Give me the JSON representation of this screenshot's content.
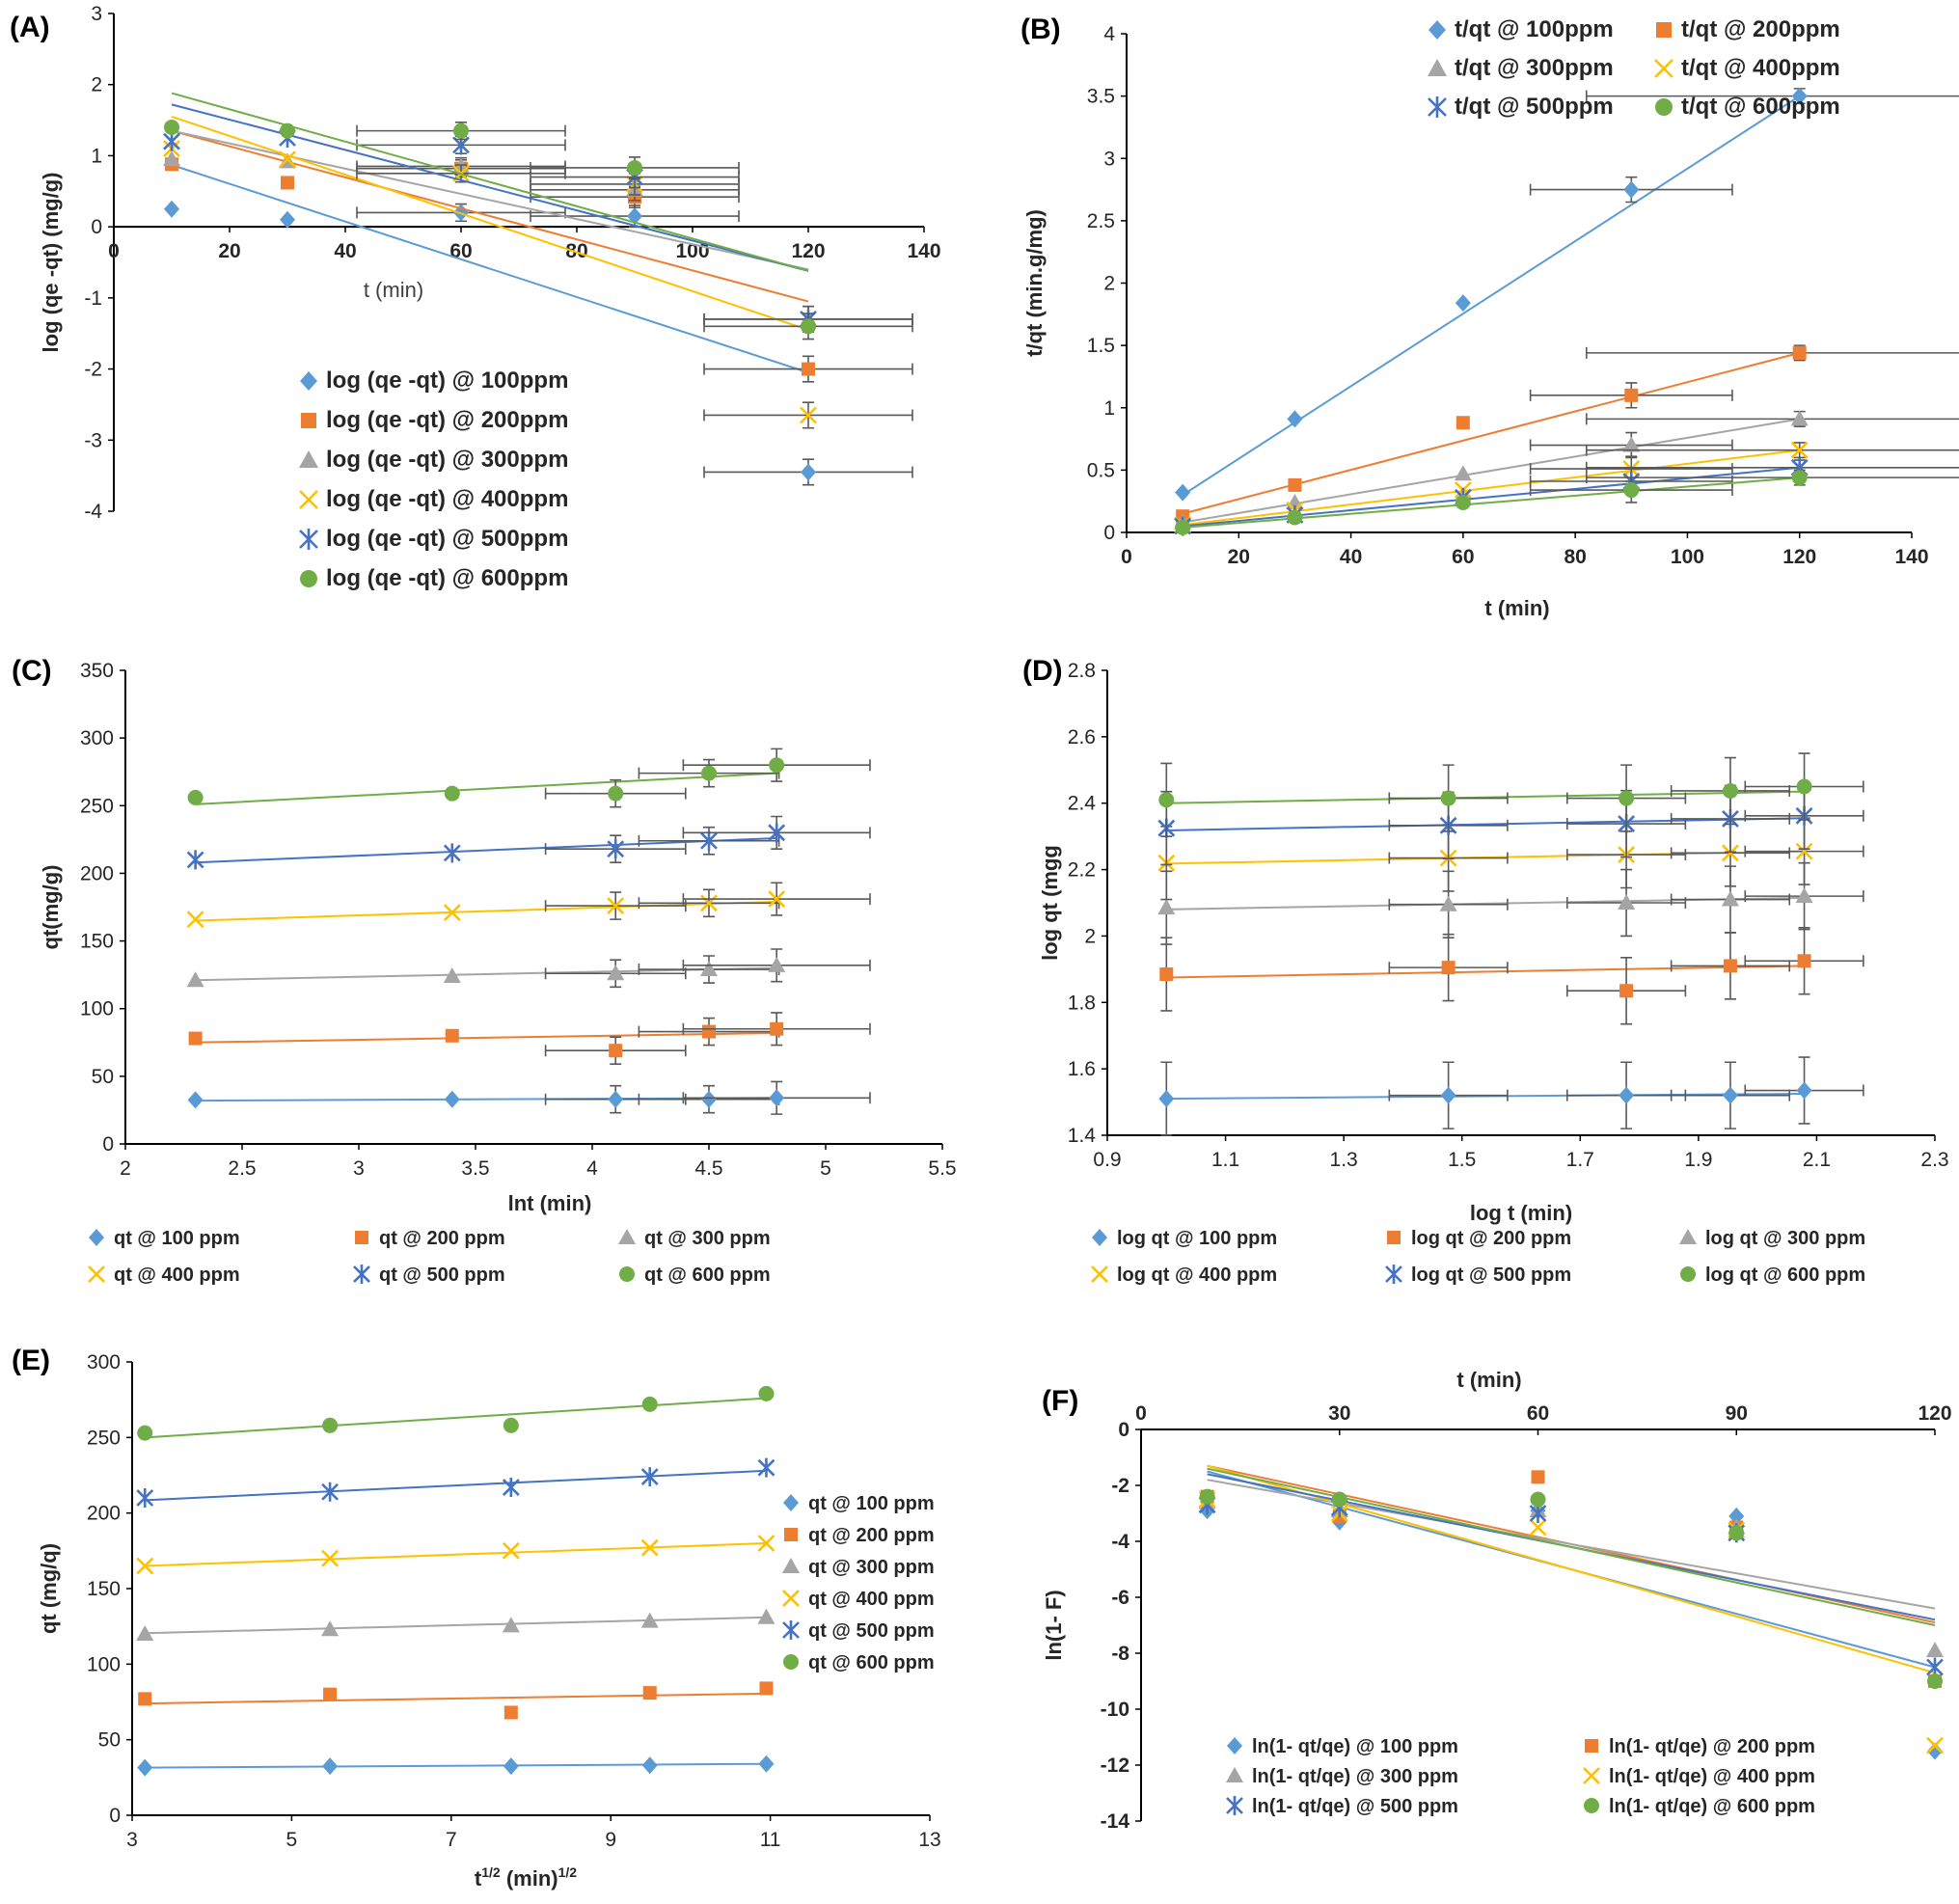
{
  "colors": [
    "#5B9BD5",
    "#ED7D31",
    "#A5A5A5",
    "#FFC000",
    "#4472C4",
    "#70AD47"
  ],
  "chart_data": [
    {
      "id": "A",
      "panel_label": "(A)",
      "type": "scatter",
      "xlabel": "t (min)",
      "ylabel": "log (qe -qt) (mg/g)",
      "xlim": [
        0,
        140
      ],
      "ylim": [
        -4,
        3
      ],
      "xticks": [
        "0",
        "20",
        "40",
        "60",
        "80",
        "100",
        "120",
        "140"
      ],
      "yticks": [
        "-4",
        "-3",
        "-2",
        "-1",
        "0",
        "1",
        "2",
        "3"
      ],
      "x": [
        10,
        30,
        60,
        90,
        120
      ],
      "series": [
        {
          "name": "log (qe -qt) @ 100ppm",
          "values": [
            0.25,
            0.1,
            0.2,
            0.15,
            -3.45
          ],
          "fit": [
            0.87,
            -2.05
          ]
        },
        {
          "name": "log (qe -qt) @ 200ppm",
          "values": [
            0.88,
            0.62,
            0.82,
            0.42,
            -2.0
          ],
          "fit": [
            1.35,
            -1.05
          ]
        },
        {
          "name": "log (qe -qt) @ 300ppm",
          "values": [
            0.95,
            0.92,
            0.85,
            0.52,
            -1.3
          ],
          "fit": [
            1.35,
            -0.6
          ]
        },
        {
          "name": "log (qe -qt) @ 400ppm",
          "values": [
            1.1,
            0.95,
            0.75,
            0.6,
            -2.65
          ],
          "fit": [
            1.55,
            -1.45
          ]
        },
        {
          "name": "log (qe -qt) @ 500ppm",
          "values": [
            1.2,
            1.25,
            1.15,
            0.7,
            -1.3
          ],
          "fit": [
            1.72,
            -0.62
          ]
        },
        {
          "name": "log (qe -qt) @ 600ppm",
          "values": [
            1.4,
            1.35,
            1.35,
            0.83,
            -1.4
          ],
          "fit": [
            1.88,
            -0.62
          ]
        }
      ]
    },
    {
      "id": "B",
      "panel_label": "(B)",
      "type": "scatter",
      "xlabel": "t (min)",
      "ylabel": "t/qt (min.g/mg)",
      "xlim": [
        0,
        140
      ],
      "ylim": [
        0,
        4
      ],
      "xticks": [
        "0",
        "20",
        "40",
        "60",
        "80",
        "100",
        "120",
        "140"
      ],
      "yticks": [
        "0",
        "0.5",
        "1",
        "1.5",
        "2",
        "2.5",
        "3",
        "3.5",
        "4"
      ],
      "x": [
        10,
        30,
        60,
        90,
        120
      ],
      "series": [
        {
          "name": "t/qt @ 100ppm",
          "values": [
            0.32,
            0.91,
            1.84,
            2.75,
            3.5
          ],
          "fit": [
            0.3,
            3.5
          ]
        },
        {
          "name": "t/qt @ 200ppm",
          "values": [
            0.13,
            0.38,
            0.88,
            1.1,
            1.44
          ],
          "fit": [
            0.15,
            1.44
          ]
        },
        {
          "name": "t/qt @ 300ppm",
          "values": [
            0.08,
            0.24,
            0.47,
            0.7,
            0.91
          ],
          "fit": [
            0.08,
            0.91
          ]
        },
        {
          "name": "t/qt @ 400ppm",
          "values": [
            0.06,
            0.18,
            0.34,
            0.51,
            0.66
          ],
          "fit": [
            0.06,
            0.66
          ]
        },
        {
          "name": "t/qt @ 500ppm",
          "values": [
            0.05,
            0.14,
            0.28,
            0.41,
            0.52
          ],
          "fit": [
            0.05,
            0.52
          ]
        },
        {
          "name": "t/qt @ 600ppm",
          "values": [
            0.04,
            0.12,
            0.24,
            0.34,
            0.44
          ],
          "fit": [
            0.04,
            0.44
          ]
        }
      ]
    },
    {
      "id": "C",
      "panel_label": "(C)",
      "type": "scatter",
      "xlabel": "lnt (min)",
      "ylabel": "qt(mg/g)",
      "xlim": [
        2,
        5.5
      ],
      "ylim": [
        0,
        350
      ],
      "xticks": [
        "2",
        "2.5",
        "3",
        "3.5",
        "4",
        "4.5",
        "5",
        "5.5"
      ],
      "yticks": [
        "0",
        "50",
        "100",
        "150",
        "200",
        "250",
        "300",
        "350"
      ],
      "x": [
        2.3,
        3.4,
        4.1,
        4.5,
        4.79
      ],
      "series": [
        {
          "name": "qt @ 100 ppm",
          "values": [
            32.5,
            33,
            33,
            33,
            34
          ],
          "fit": [
            32,
            34
          ]
        },
        {
          "name": "qt @ 200 ppm",
          "values": [
            78,
            80,
            69,
            83,
            85
          ],
          "fit": [
            75,
            82
          ]
        },
        {
          "name": "qt @ 300 ppm",
          "values": [
            121,
            124,
            126,
            129,
            132
          ],
          "fit": [
            121,
            130
          ]
        },
        {
          "name": "qt @ 400 ppm",
          "values": [
            166,
            171,
            176,
            178,
            181
          ],
          "fit": [
            165,
            179
          ]
        },
        {
          "name": "qt @ 500 ppm",
          "values": [
            210,
            215,
            218,
            224,
            230
          ],
          "fit": [
            208,
            226
          ]
        },
        {
          "name": "qt @ 600 ppm",
          "values": [
            256,
            259,
            259,
            274,
            280
          ],
          "fit": [
            251,
            274
          ]
        }
      ]
    },
    {
      "id": "D",
      "panel_label": "(D)",
      "type": "scatter",
      "xlabel": "log t (min)",
      "ylabel": "log qt (mgg",
      "xlim": [
        0.9,
        2.3
      ],
      "ylim": [
        1.4,
        2.8
      ],
      "xticks": [
        "0.9",
        "1.1",
        "1.3",
        "1.5",
        "1.7",
        "1.9",
        "2.1",
        "2.3"
      ],
      "yticks": [
        "1.4",
        "1.6",
        "1.8",
        "2",
        "2.2",
        "2.4",
        "2.6",
        "2.8"
      ],
      "x": [
        1.0,
        1.477,
        1.778,
        1.954,
        2.079
      ],
      "series": [
        {
          "name": "log qt @ 100 ppm",
          "values": [
            1.51,
            1.52,
            1.52,
            1.52,
            1.535
          ],
          "fit": [
            1.51,
            1.525
          ]
        },
        {
          "name": "log qt @ 200 ppm",
          "values": [
            1.885,
            1.905,
            1.835,
            1.91,
            1.925
          ],
          "fit": [
            1.875,
            1.91
          ]
        },
        {
          "name": "log qt @ 300 ppm",
          "values": [
            2.085,
            2.095,
            2.1,
            2.11,
            2.12
          ],
          "fit": [
            2.08,
            2.115
          ]
        },
        {
          "name": "log qt @ 400 ppm",
          "values": [
            2.22,
            2.235,
            2.245,
            2.25,
            2.255
          ],
          "fit": [
            2.218,
            2.255
          ]
        },
        {
          "name": "log qt @ 500 ppm",
          "values": [
            2.325,
            2.333,
            2.338,
            2.353,
            2.362
          ],
          "fit": [
            2.318,
            2.355
          ]
        },
        {
          "name": "log qt @ 600 ppm",
          "values": [
            2.41,
            2.415,
            2.415,
            2.437,
            2.45
          ],
          "fit": [
            2.4,
            2.435
          ]
        }
      ]
    },
    {
      "id": "E",
      "panel_label": "(E)",
      "type": "scatter",
      "xlabel": "t1/2 (min)1/2",
      "ylabel": "qt (mg/q)",
      "xlim": [
        3,
        13
      ],
      "ylim": [
        0,
        300
      ],
      "xticks": [
        "3",
        "5",
        "7",
        "9",
        "11",
        "13"
      ],
      "yticks": [
        "0",
        "50",
        "100",
        "150",
        "200",
        "250",
        "300"
      ],
      "x": [
        3.16,
        5.48,
        7.75,
        9.49,
        10.95
      ],
      "series": [
        {
          "name": "qt @ 100 ppm",
          "values": [
            31.5,
            32.5,
            32.5,
            33,
            34
          ],
          "fit": [
            31.5,
            34
          ]
        },
        {
          "name": "qt @ 200 ppm",
          "values": [
            77,
            80,
            68,
            81,
            84
          ],
          "fit": [
            74,
            80.5
          ]
        },
        {
          "name": "qt @ 300 ppm",
          "values": [
            120,
            123,
            125.5,
            128.5,
            131
          ],
          "fit": [
            120.5,
            131
          ]
        },
        {
          "name": "qt @ 400 ppm",
          "values": [
            165,
            170,
            175,
            177,
            180
          ],
          "fit": [
            165,
            180
          ]
        },
        {
          "name": "qt @ 500 ppm",
          "values": [
            210,
            214,
            217,
            224,
            230
          ],
          "fit": [
            208.5,
            228
          ]
        },
        {
          "name": "qt @ 600 ppm",
          "values": [
            253,
            258,
            258,
            272,
            279
          ],
          "fit": [
            250,
            276
          ]
        }
      ]
    },
    {
      "id": "F",
      "panel_label": "(F)",
      "type": "scatter",
      "title": "t (min)",
      "ylabel": "ln(1- F)",
      "xlim": [
        0,
        120
      ],
      "ylim": [
        -14,
        0
      ],
      "xticks": [
        "0",
        "30",
        "60",
        "90",
        "120"
      ],
      "yticks": [
        "-14",
        "-12",
        "-10",
        "-8",
        "-6",
        "-4",
        "-2",
        "0"
      ],
      "x": [
        10,
        30,
        60,
        90,
        120
      ],
      "series": [
        {
          "name": "ln(1- qt/qe) @ 100 ppm",
          "values": [
            -2.9,
            -3.3,
            -2.9,
            -3.1,
            -11.5
          ],
          "fit": [
            -1.5,
            -8.5
          ]
        },
        {
          "name": "ln(1- qt/qe) @ 200 ppm",
          "values": [
            -2.4,
            -3.1,
            -1.7,
            -3.5,
            -9.0
          ],
          "fit": [
            -1.3,
            -6.9
          ]
        },
        {
          "name": "ln(1- qt/qe) @ 300 ppm",
          "values": [
            -2.6,
            -2.9,
            -2.9,
            -3.5,
            -7.9
          ],
          "fit": [
            -1.8,
            -6.4
          ]
        },
        {
          "name": "ln(1- qt/qe) @ 400 ppm",
          "values": [
            -2.5,
            -3.0,
            -3.5,
            -3.6,
            -11.3
          ],
          "fit": [
            -1.3,
            -8.7
          ]
        },
        {
          "name": "ln(1- qt/qe) @ 500 ppm",
          "values": [
            -2.7,
            -2.8,
            -3.0,
            -3.7,
            -8.5
          ],
          "fit": [
            -1.6,
            -6.8
          ]
        },
        {
          "name": "ln(1- qt/qe) @ 600 ppm",
          "values": [
            -2.4,
            -2.5,
            -2.5,
            -3.7,
            -9.0
          ],
          "fit": [
            -1.4,
            -7.0
          ]
        }
      ]
    }
  ]
}
